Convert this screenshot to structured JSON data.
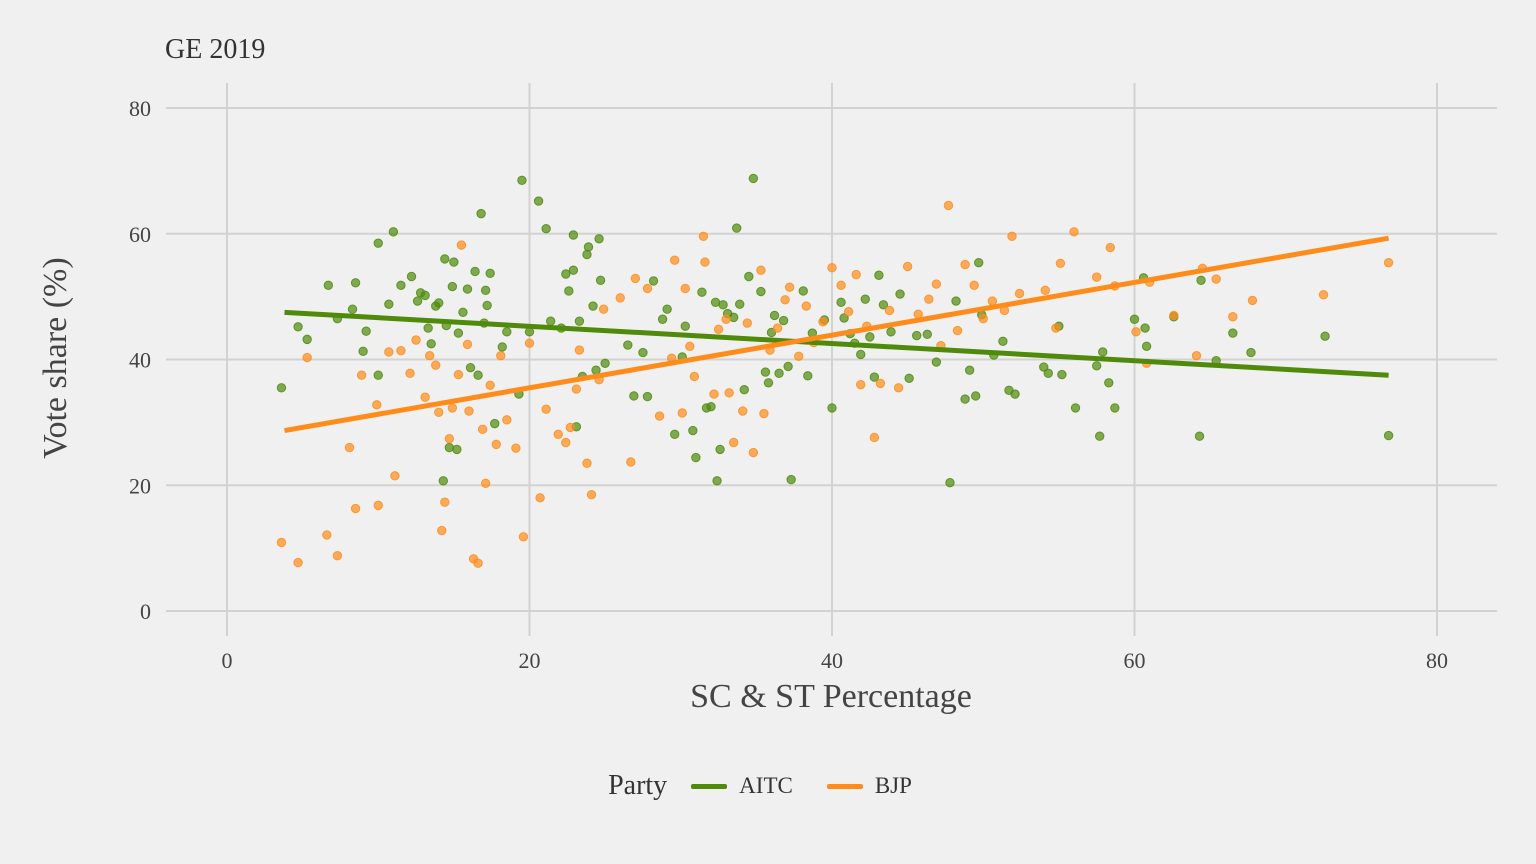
{
  "title": "GE 2019",
  "chart_data": {
    "type": "scatter",
    "title": "GE 2019",
    "xlabel": "SC & ST Percentage",
    "ylabel": "Vote share (%)",
    "xlim": [
      0,
      80
    ],
    "ylim": [
      0,
      80
    ],
    "x_ticks": [
      0,
      20,
      40,
      60,
      80
    ],
    "y_ticks": [
      0,
      20,
      40,
      60,
      80
    ],
    "grid": true,
    "legend": {
      "title": "Party",
      "position": "bottom"
    },
    "series": [
      {
        "name": "AITC",
        "color": "#4f8a0b",
        "trend": [
          [
            3.8,
            47.5
          ],
          [
            76.8,
            37.5
          ]
        ],
        "points": [
          [
            3.6,
            35.5
          ],
          [
            4.7,
            45.2
          ],
          [
            5.3,
            43.2
          ],
          [
            6.7,
            51.8
          ],
          [
            7.3,
            46.5
          ],
          [
            8.3,
            48.0
          ],
          [
            8.5,
            52.2
          ],
          [
            9.0,
            41.3
          ],
          [
            9.2,
            44.5
          ],
          [
            10.0,
            58.5
          ],
          [
            10.0,
            37.5
          ],
          [
            10.7,
            48.8
          ],
          [
            11.0,
            60.3
          ],
          [
            11.5,
            51.8
          ],
          [
            12.2,
            53.2
          ],
          [
            12.6,
            49.3
          ],
          [
            12.8,
            50.6
          ],
          [
            13.1,
            50.2
          ],
          [
            13.3,
            45.0
          ],
          [
            13.5,
            42.5
          ],
          [
            13.8,
            48.5
          ],
          [
            14.0,
            49.0
          ],
          [
            14.3,
            20.7
          ],
          [
            14.4,
            56.0
          ],
          [
            14.5,
            45.4
          ],
          [
            14.7,
            26.0
          ],
          [
            14.9,
            51.6
          ],
          [
            15.0,
            55.5
          ],
          [
            15.2,
            25.7
          ],
          [
            15.3,
            44.2
          ],
          [
            15.6,
            47.5
          ],
          [
            15.9,
            51.2
          ],
          [
            16.1,
            38.7
          ],
          [
            16.4,
            54.0
          ],
          [
            16.6,
            37.5
          ],
          [
            16.8,
            63.2
          ],
          [
            17.0,
            45.8
          ],
          [
            17.2,
            48.6
          ],
          [
            17.4,
            53.7
          ],
          [
            17.7,
            29.8
          ],
          [
            17.1,
            51.0
          ],
          [
            18.2,
            42.0
          ],
          [
            18.5,
            44.4
          ],
          [
            19.3,
            34.5
          ],
          [
            19.5,
            68.5
          ],
          [
            20.0,
            44.4
          ],
          [
            20.6,
            65.2
          ],
          [
            21.1,
            60.8
          ],
          [
            21.4,
            46.1
          ],
          [
            22.1,
            45.0
          ],
          [
            22.4,
            53.6
          ],
          [
            22.6,
            50.9
          ],
          [
            22.9,
            54.2
          ],
          [
            22.9,
            59.8
          ],
          [
            23.1,
            29.3
          ],
          [
            23.3,
            46.1
          ],
          [
            23.5,
            37.3
          ],
          [
            23.8,
            56.7
          ],
          [
            23.9,
            57.9
          ],
          [
            24.2,
            48.5
          ],
          [
            24.4,
            38.3
          ],
          [
            24.6,
            59.2
          ],
          [
            24.7,
            52.6
          ],
          [
            25.0,
            39.4
          ],
          [
            26.5,
            42.3
          ],
          [
            26.9,
            34.2
          ],
          [
            27.5,
            41.1
          ],
          [
            27.8,
            34.1
          ],
          [
            28.2,
            52.5
          ],
          [
            28.8,
            46.4
          ],
          [
            29.1,
            48.0
          ],
          [
            29.6,
            28.1
          ],
          [
            30.1,
            40.4
          ],
          [
            30.3,
            45.3
          ],
          [
            30.8,
            28.7
          ],
          [
            31.0,
            24.4
          ],
          [
            31.4,
            50.7
          ],
          [
            31.7,
            32.3
          ],
          [
            32.0,
            32.5
          ],
          [
            32.3,
            49.1
          ],
          [
            32.4,
            20.7
          ],
          [
            32.6,
            25.7
          ],
          [
            32.8,
            48.7
          ],
          [
            33.1,
            47.3
          ],
          [
            33.5,
            46.7
          ],
          [
            33.7,
            60.9
          ],
          [
            33.9,
            48.8
          ],
          [
            34.2,
            35.2
          ],
          [
            34.5,
            53.2
          ],
          [
            34.8,
            68.8
          ],
          [
            35.3,
            50.8
          ],
          [
            35.6,
            38.0
          ],
          [
            35.8,
            36.3
          ],
          [
            36.0,
            44.3
          ],
          [
            36.2,
            47.0
          ],
          [
            36.5,
            37.8
          ],
          [
            36.8,
            46.2
          ],
          [
            37.1,
            38.9
          ],
          [
            37.3,
            20.9
          ],
          [
            38.1,
            50.9
          ],
          [
            38.4,
            37.4
          ],
          [
            38.7,
            44.2
          ],
          [
            39.5,
            46.3
          ],
          [
            40.0,
            32.3
          ],
          [
            40.6,
            49.1
          ],
          [
            40.8,
            46.6
          ],
          [
            41.2,
            44.1
          ],
          [
            41.5,
            42.6
          ],
          [
            41.9,
            40.8
          ],
          [
            42.2,
            49.6
          ],
          [
            42.5,
            43.6
          ],
          [
            42.8,
            37.2
          ],
          [
            43.1,
            53.4
          ],
          [
            43.4,
            48.7
          ],
          [
            43.9,
            44.4
          ],
          [
            44.5,
            50.4
          ],
          [
            45.1,
            37.0
          ],
          [
            45.6,
            43.8
          ],
          [
            46.3,
            44.0
          ],
          [
            46.9,
            39.6
          ],
          [
            47.8,
            20.4
          ],
          [
            48.2,
            49.3
          ],
          [
            48.8,
            33.7
          ],
          [
            49.1,
            38.3
          ],
          [
            49.5,
            34.2
          ],
          [
            49.7,
            55.4
          ],
          [
            49.9,
            47.1
          ],
          [
            50.7,
            40.7
          ],
          [
            51.3,
            42.9
          ],
          [
            51.7,
            35.1
          ],
          [
            52.1,
            34.5
          ],
          [
            54.0,
            38.8
          ],
          [
            54.3,
            37.8
          ],
          [
            55.0,
            45.3
          ],
          [
            55.2,
            37.6
          ],
          [
            56.1,
            32.3
          ],
          [
            57.5,
            39.0
          ],
          [
            57.7,
            27.8
          ],
          [
            57.9,
            41.2
          ],
          [
            58.3,
            36.3
          ],
          [
            58.7,
            32.3
          ],
          [
            60.0,
            46.4
          ],
          [
            60.6,
            53.0
          ],
          [
            60.8,
            42.1
          ],
          [
            60.7,
            45.0
          ],
          [
            62.6,
            46.8
          ],
          [
            64.3,
            27.8
          ],
          [
            64.4,
            52.6
          ],
          [
            65.4,
            39.8
          ],
          [
            66.5,
            44.2
          ],
          [
            67.7,
            41.1
          ],
          [
            72.6,
            43.7
          ],
          [
            76.8,
            27.9
          ]
        ]
      },
      {
        "name": "BJP",
        "color": "#ff8c1a",
        "trend": [
          [
            3.8,
            28.7
          ],
          [
            76.8,
            59.3
          ]
        ],
        "points": [
          [
            3.6,
            10.9
          ],
          [
            4.7,
            7.7
          ],
          [
            5.3,
            40.3
          ],
          [
            6.6,
            12.1
          ],
          [
            7.3,
            8.8
          ],
          [
            8.1,
            26.0
          ],
          [
            8.5,
            16.3
          ],
          [
            8.9,
            37.5
          ],
          [
            9.9,
            32.8
          ],
          [
            10.0,
            16.8
          ],
          [
            10.7,
            41.2
          ],
          [
            11.1,
            21.5
          ],
          [
            11.5,
            41.4
          ],
          [
            12.1,
            37.8
          ],
          [
            12.5,
            43.1
          ],
          [
            13.1,
            34.0
          ],
          [
            13.4,
            40.6
          ],
          [
            13.8,
            39.1
          ],
          [
            14.0,
            31.6
          ],
          [
            14.2,
            12.8
          ],
          [
            14.4,
            17.3
          ],
          [
            14.7,
            27.4
          ],
          [
            14.9,
            32.3
          ],
          [
            15.3,
            37.6
          ],
          [
            15.5,
            58.2
          ],
          [
            15.9,
            42.4
          ],
          [
            16.0,
            31.8
          ],
          [
            16.3,
            8.3
          ],
          [
            16.6,
            7.6
          ],
          [
            16.9,
            28.9
          ],
          [
            17.1,
            20.3
          ],
          [
            17.4,
            35.9
          ],
          [
            17.8,
            26.5
          ],
          [
            18.1,
            40.6
          ],
          [
            18.5,
            30.4
          ],
          [
            19.1,
            25.9
          ],
          [
            19.6,
            11.8
          ],
          [
            20.0,
            42.6
          ],
          [
            20.7,
            18.0
          ],
          [
            21.1,
            32.1
          ],
          [
            21.9,
            28.1
          ],
          [
            22.4,
            26.8
          ],
          [
            22.7,
            29.2
          ],
          [
            23.1,
            35.3
          ],
          [
            23.3,
            41.5
          ],
          [
            23.8,
            23.5
          ],
          [
            24.1,
            18.5
          ],
          [
            24.6,
            36.8
          ],
          [
            24.9,
            48.0
          ],
          [
            26.0,
            49.8
          ],
          [
            26.7,
            23.7
          ],
          [
            27.0,
            52.9
          ],
          [
            27.8,
            51.3
          ],
          [
            28.6,
            31.0
          ],
          [
            29.4,
            40.2
          ],
          [
            29.6,
            55.8
          ],
          [
            30.1,
            31.5
          ],
          [
            30.3,
            51.3
          ],
          [
            30.6,
            42.1
          ],
          [
            30.9,
            37.3
          ],
          [
            31.5,
            59.6
          ],
          [
            31.6,
            55.5
          ],
          [
            32.2,
            34.5
          ],
          [
            32.5,
            44.8
          ],
          [
            33.0,
            46.4
          ],
          [
            33.2,
            34.7
          ],
          [
            33.5,
            26.8
          ],
          [
            34.1,
            31.8
          ],
          [
            34.4,
            45.8
          ],
          [
            34.8,
            25.2
          ],
          [
            35.3,
            54.2
          ],
          [
            35.5,
            31.4
          ],
          [
            35.9,
            41.5
          ],
          [
            36.4,
            45.0
          ],
          [
            36.9,
            49.5
          ],
          [
            37.2,
            51.5
          ],
          [
            37.8,
            40.5
          ],
          [
            38.3,
            48.5
          ],
          [
            38.8,
            42.7
          ],
          [
            39.4,
            46.0
          ],
          [
            40.0,
            54.6
          ],
          [
            40.6,
            51.8
          ],
          [
            41.1,
            47.6
          ],
          [
            41.6,
            53.5
          ],
          [
            41.9,
            36.0
          ],
          [
            42.3,
            45.3
          ],
          [
            42.8,
            27.6
          ],
          [
            43.2,
            36.2
          ],
          [
            43.8,
            47.8
          ],
          [
            44.4,
            35.5
          ],
          [
            45.0,
            54.8
          ],
          [
            45.7,
            47.2
          ],
          [
            46.4,
            49.6
          ],
          [
            46.9,
            52.0
          ],
          [
            47.2,
            42.2
          ],
          [
            47.7,
            64.5
          ],
          [
            48.3,
            44.6
          ],
          [
            48.8,
            55.1
          ],
          [
            49.4,
            51.8
          ],
          [
            50.0,
            46.5
          ],
          [
            50.6,
            49.3
          ],
          [
            51.4,
            47.8
          ],
          [
            51.9,
            59.6
          ],
          [
            52.4,
            50.5
          ],
          [
            54.1,
            51.0
          ],
          [
            54.8,
            45.0
          ],
          [
            55.1,
            55.3
          ],
          [
            56.0,
            60.3
          ],
          [
            57.5,
            53.1
          ],
          [
            58.4,
            57.8
          ],
          [
            58.7,
            51.7
          ],
          [
            60.1,
            44.4
          ],
          [
            60.8,
            39.4
          ],
          [
            61.0,
            52.3
          ],
          [
            62.6,
            47.0
          ],
          [
            64.1,
            40.6
          ],
          [
            64.5,
            54.5
          ],
          [
            65.4,
            52.8
          ],
          [
            66.5,
            46.8
          ],
          [
            67.8,
            49.4
          ],
          [
            72.5,
            50.3
          ],
          [
            76.8,
            55.4
          ]
        ]
      }
    ]
  }
}
